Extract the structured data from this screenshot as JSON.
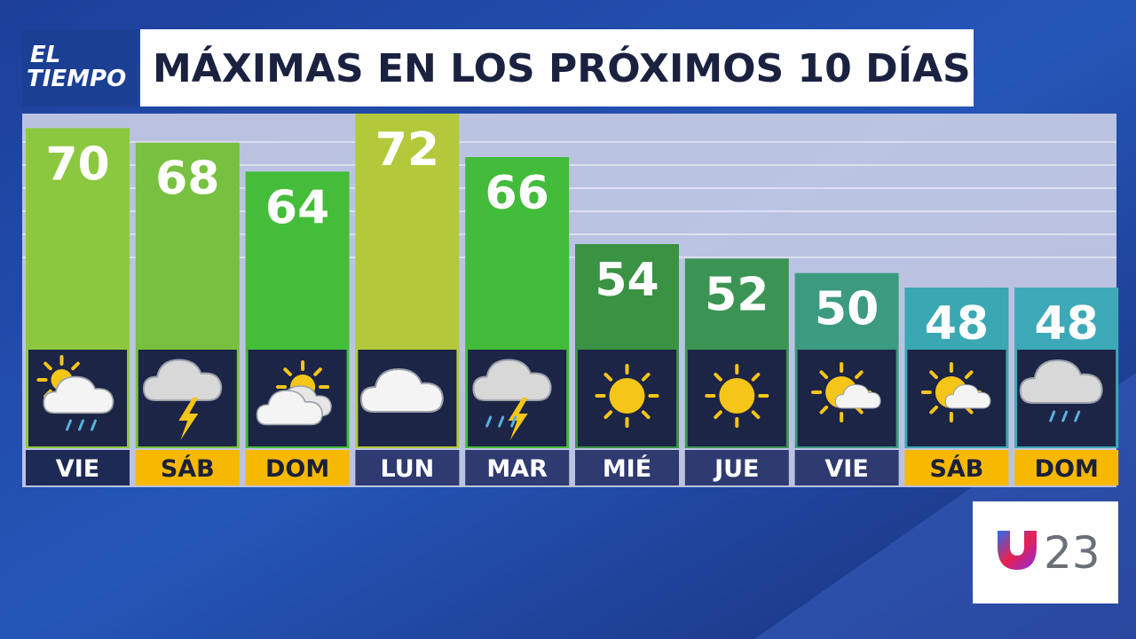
{
  "logo": {
    "line1": "EL",
    "line2": "TIEMPO"
  },
  "station": "23",
  "chart_data": {
    "type": "bar",
    "title": "MÁXIMAS EN LOS PRÓXIMOS 10 DÍAS",
    "categories": [
      "VIE",
      "SÁB",
      "DOM",
      "LUN",
      "MAR",
      "MIÉ",
      "JUE",
      "VIE",
      "SÁB",
      "DOM"
    ],
    "values": [
      70,
      68,
      64,
      72,
      66,
      54,
      52,
      50,
      48,
      48
    ],
    "colors": [
      "#8cc83f",
      "#78c040",
      "#44bd3a",
      "#b3c93b",
      "#42bc3a",
      "#3a9243",
      "#3b9454",
      "#3c9a80",
      "#3aa8b2",
      "#3da9b8"
    ],
    "label_colors": [
      "#1e2a56",
      "#f6b800",
      "#f6b800",
      "#2e3a70",
      "#2e3a70",
      "#2e3a70",
      "#2e3a70",
      "#2e3a70",
      "#f6b800",
      "#f6b800"
    ],
    "label_text_colors": [
      "#ffffff",
      "#1a1f3a",
      "#1a1f3a",
      "#ffffff",
      "#ffffff",
      "#ffffff",
      "#ffffff",
      "#ffffff",
      "#1a1f3a",
      "#1a1f3a"
    ]
  }
}
